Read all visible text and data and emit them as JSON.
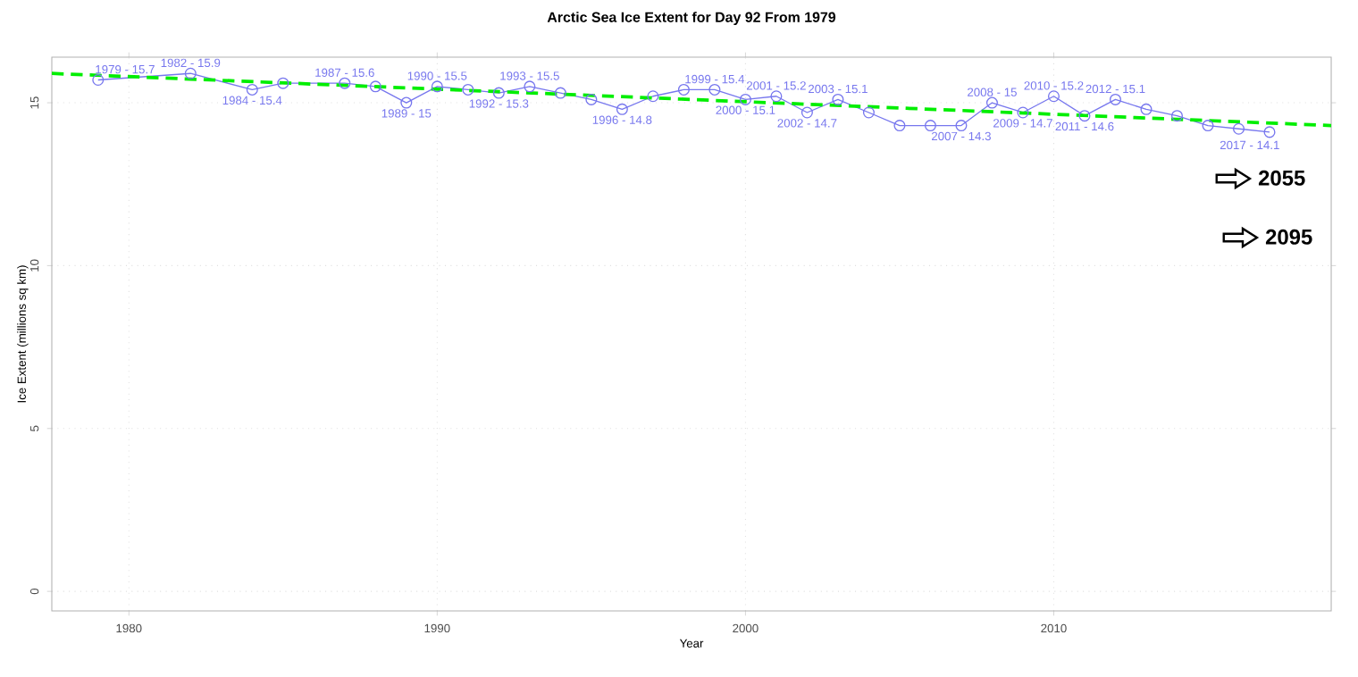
{
  "chart_data": {
    "type": "line",
    "title": "Arctic Sea Ice Extent for Day 92 From 1979",
    "xlabel": "Year",
    "ylabel": "Ice Extent (millions sq km)",
    "x": [
      1979,
      1982,
      1984,
      1985,
      1987,
      1988,
      1989,
      1990,
      1991,
      1992,
      1993,
      1994,
      1995,
      1996,
      1997,
      1998,
      1999,
      2000,
      2001,
      2002,
      2003,
      2004,
      2005,
      2006,
      2007,
      2008,
      2009,
      2010,
      2011,
      2012,
      2013,
      2014,
      2015,
      2016,
      2017
    ],
    "series": [
      {
        "color": "#7777ee",
        "marker": "circle",
        "line_style": "solid",
        "values": [
          15.7,
          15.9,
          15.4,
          15.6,
          15.6,
          15.5,
          15,
          15.5,
          15.4,
          15.3,
          15.5,
          15.3,
          15.1,
          14.8,
          15.2,
          15.4,
          15.4,
          15.1,
          15.2,
          14.7,
          15.1,
          14.7,
          14.3,
          14.3,
          14.3,
          15,
          14.7,
          15.2,
          14.6,
          15.1,
          14.8,
          14.6,
          14.3,
          14.2,
          14.1
        ]
      },
      {
        "color": "#00ee00",
        "marker": "none",
        "line_style": "dashed",
        "x": [
          1977.5,
          2019
        ],
        "values": [
          15.9,
          14.3
        ]
      }
    ],
    "xlim": [
      1977.5,
      2019
    ],
    "ylim": [
      -0.6,
      16.4
    ],
    "xticks": [
      1980,
      1990,
      2000,
      2010
    ],
    "yticks": [
      0,
      5,
      10,
      15
    ],
    "grid": true,
    "annotations": [
      {
        "text": "1979 - 15.7",
        "x": 1979,
        "y": 15.7
      },
      {
        "text": "1982 - 15.9",
        "x": 1982,
        "y": 15.9
      },
      {
        "text": "1984 - 15.4",
        "x": 1984,
        "y": 15.4
      },
      {
        "text": "1987 - 15.6",
        "x": 1987,
        "y": 15.6
      },
      {
        "text": "1989 - 15",
        "x": 1989,
        "y": 15
      },
      {
        "text": "1990 - 15.5",
        "x": 1990,
        "y": 15.5
      },
      {
        "text": "1992 - 15.3",
        "x": 1992,
        "y": 15.3
      },
      {
        "text": "1993 - 15.5",
        "x": 1993,
        "y": 15.5
      },
      {
        "text": "1996 - 14.8",
        "x": 1996,
        "y": 14.8
      },
      {
        "text": "1999 - 15.4",
        "x": 1999,
        "y": 15.4
      },
      {
        "text": "2000 - 15.1",
        "x": 2000,
        "y": 15.1
      },
      {
        "text": "2001 - 15.2",
        "x": 2001,
        "y": 15.2
      },
      {
        "text": "2002 - 14.7",
        "x": 2002,
        "y": 14.7
      },
      {
        "text": "2003 - 15.1",
        "x": 2003,
        "y": 15.1
      },
      {
        "text": "2007 - 14.3",
        "x": 2007,
        "y": 14.3
      },
      {
        "text": "2008 - 15",
        "x": 2008,
        "y": 15
      },
      {
        "text": "2009 - 14.7",
        "x": 2009,
        "y": 14.7
      },
      {
        "text": "2010 - 15.2",
        "x": 2010,
        "y": 15.2
      },
      {
        "text": "2011 - 14.6",
        "x": 2011,
        "y": 14.6
      },
      {
        "text": "2012 - 15.1",
        "x": 2012,
        "y": 15.1
      },
      {
        "text": "2017 - 14.1",
        "x": 2017,
        "y": 14.1
      },
      "2055",
      "2095"
    ]
  }
}
